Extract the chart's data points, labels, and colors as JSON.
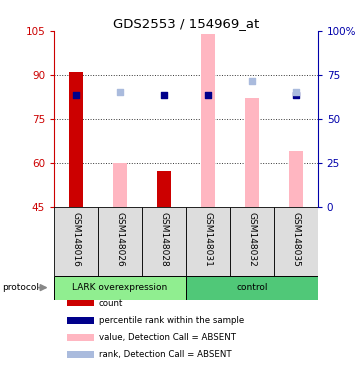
{
  "title": "GDS2553 / 154969_at",
  "samples": [
    "GSM148016",
    "GSM148026",
    "GSM148028",
    "GSM148031",
    "GSM148032",
    "GSM148035"
  ],
  "ylim_left": [
    45,
    105
  ],
  "ylim_right": [
    0,
    100
  ],
  "yticks_left": [
    45,
    60,
    75,
    90,
    105
  ],
  "yticks_right": [
    0,
    25,
    50,
    75,
    100
  ],
  "ytick_labels_right": [
    "0",
    "25",
    "50",
    "75",
    "100%"
  ],
  "left_axis_color": "#CC0000",
  "right_axis_color": "#0000AA",
  "bar_color_absent": "#FFB6C1",
  "bar_color_present": "#CC0000",
  "dot_color_present": "#00008B",
  "dot_color_absent": "#AABBDD",
  "count_bars": [
    91,
    null,
    57,
    null,
    null,
    null
  ],
  "absent_value_bars": [
    null,
    60,
    null,
    104,
    82,
    64
  ],
  "percentile_rank_dots": [
    83,
    null,
    83,
    83,
    null,
    83
  ],
  "absent_rank_dots": [
    null,
    84,
    null,
    null,
    88,
    84
  ],
  "group_split": 3,
  "group_label_left": "LARK overexpression",
  "group_label_right": "control",
  "group_color_left": "#90EE90",
  "group_color_right": "#50C878",
  "protocol_label": "protocol",
  "legend_items": [
    {
      "label": "count",
      "color": "#CC0000"
    },
    {
      "label": "percentile rank within the sample",
      "color": "#00008B"
    },
    {
      "label": "value, Detection Call = ABSENT",
      "color": "#FFB6C1"
    },
    {
      "label": "rank, Detection Call = ABSENT",
      "color": "#AABBDD"
    }
  ]
}
